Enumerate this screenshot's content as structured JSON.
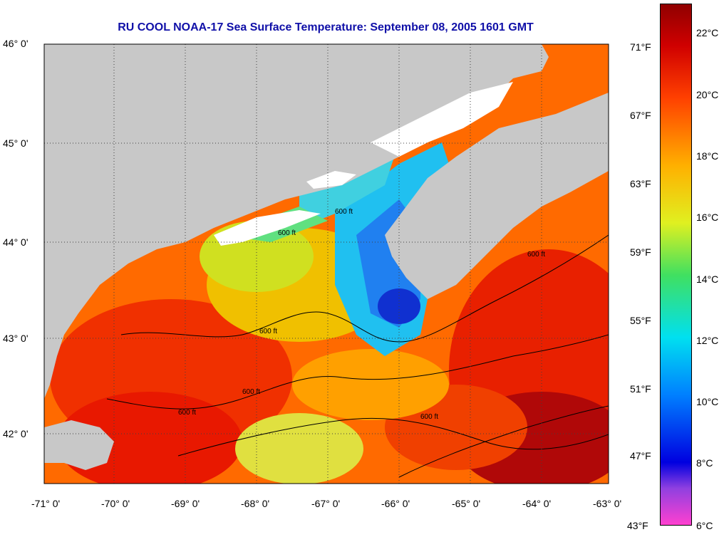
{
  "title": "RU COOL  NOAA-17  Sea Surface Temperature:  September 08, 2005 1601 GMT",
  "lat_labels": [
    "46° 0'",
    "45° 0'",
    "44° 0'",
    "43° 0'",
    "42° 0'"
  ],
  "lon_labels": [
    "-71° 0'",
    "-70° 0'",
    "-69° 0'",
    "-68° 0'",
    "-67° 0'",
    "-66° 0'",
    "-65° 0'",
    "-64° 0'",
    "-63° 0'"
  ],
  "fahrenheit_labels": [
    "71°F",
    "67°F",
    "63°F",
    "59°F",
    "55°F",
    "51°F",
    "47°F",
    "43°F"
  ],
  "celsius_labels": [
    "22°C",
    "20°C",
    "18°C",
    "16°C",
    "14°C",
    "12°C",
    "10°C",
    "8°C",
    "6°C"
  ],
  "contour_label": "600 ft",
  "colors": {
    "land": "#c8c8c8",
    "cloud": "#ffffff",
    "title": "#1010a8",
    "warm": "#e01000",
    "cold": "#2040e0"
  }
}
